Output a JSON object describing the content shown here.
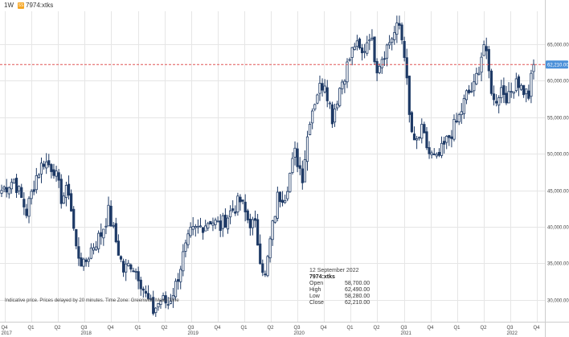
{
  "header": {
    "period": "1W",
    "badge": "SS",
    "symbol": "7974:xtks"
  },
  "last_price_label": "62,210.00",
  "footer_note": "Indicative price. Prices delayed by 20 minutes.   Time Zone: Greenwich Mean Time",
  "info": {
    "date": "12 September 2022",
    "symbol": "7974:xtks",
    "rows": [
      {
        "label": "Open",
        "value": "58,700.00"
      },
      {
        "label": "High",
        "value": "62,490.00"
      },
      {
        "label": "Low",
        "value": "58,280.00"
      },
      {
        "label": "Close",
        "value": "62,210.00"
      }
    ]
  },
  "colors": {
    "candle": "#1e3a66",
    "grid": "#e6e6e6",
    "last_price_line": "#e05555",
    "price_tag": "#4a90d9"
  },
  "chart_data": {
    "type": "candlestick",
    "title": "",
    "ylabel": "",
    "ylim": [
      27000,
      69500
    ],
    "y_ticks": [
      30000,
      35000,
      40000,
      45000,
      50000,
      55000,
      60000,
      65000
    ],
    "y_tick_labels": [
      "30,000.00",
      "35,000.00",
      "40,000.00",
      "45,000.00",
      "50,000.00",
      "55,000.00",
      "60,000.00",
      "65,000.00"
    ],
    "x_ticks": [
      {
        "q": "Q4",
        "year": "2017"
      },
      {
        "q": "Q1",
        "year": ""
      },
      {
        "q": "Q2",
        "year": ""
      },
      {
        "q": "Q3",
        "year": "2018"
      },
      {
        "q": "Q4",
        "year": ""
      },
      {
        "q": "Q1",
        "year": ""
      },
      {
        "q": "Q2",
        "year": ""
      },
      {
        "q": "Q3",
        "year": "2019"
      },
      {
        "q": "Q4",
        "year": ""
      },
      {
        "q": "Q1",
        "year": ""
      },
      {
        "q": "Q2",
        "year": ""
      },
      {
        "q": "Q3",
        "year": "2020"
      },
      {
        "q": "Q4",
        "year": ""
      },
      {
        "q": "Q1",
        "year": ""
      },
      {
        "q": "Q2",
        "year": ""
      },
      {
        "q": "Q3",
        "year": "2021"
      },
      {
        "q": "Q4",
        "year": ""
      },
      {
        "q": "Q1",
        "year": ""
      },
      {
        "q": "Q2",
        "year": ""
      },
      {
        "q": "Q3",
        "year": "2022"
      },
      {
        "q": "Q4",
        "year": ""
      }
    ],
    "last_close": 62210,
    "close_anchors": [
      [
        0,
        45000
      ],
      [
        5,
        46500
      ],
      [
        10,
        42000
      ],
      [
        14,
        47000
      ],
      [
        17,
        49000
      ],
      [
        21,
        48000
      ],
      [
        24,
        44000
      ],
      [
        27,
        45000
      ],
      [
        30,
        37000
      ],
      [
        33,
        34500
      ],
      [
        36,
        37000
      ],
      [
        40,
        39000
      ],
      [
        43,
        42000
      ],
      [
        46,
        38000
      ],
      [
        49,
        34000
      ],
      [
        52,
        35000
      ],
      [
        55,
        33500
      ],
      [
        58,
        30500
      ],
      [
        61,
        28500
      ],
      [
        64,
        30000
      ],
      [
        67,
        29500
      ],
      [
        70,
        32000
      ],
      [
        73,
        36000
      ],
      [
        76,
        39000
      ],
      [
        80,
        40000
      ],
      [
        84,
        41000
      ],
      [
        88,
        40000
      ],
      [
        92,
        42000
      ],
      [
        96,
        43500
      ],
      [
        99,
        41000
      ],
      [
        102,
        40000
      ],
      [
        104,
        36000
      ],
      [
        106,
        33000
      ],
      [
        108,
        38000
      ],
      [
        111,
        44000
      ],
      [
        114,
        44500
      ],
      [
        118,
        50000
      ],
      [
        121,
        47000
      ],
      [
        124,
        55000
      ],
      [
        127,
        58500
      ],
      [
        130,
        60000
      ],
      [
        133,
        55000
      ],
      [
        136,
        59000
      ],
      [
        139,
        62000
      ],
      [
        142,
        65000
      ],
      [
        145,
        63500
      ],
      [
        148,
        66500
      ],
      [
        151,
        62000
      ],
      [
        154,
        64000
      ],
      [
        157,
        66000
      ],
      [
        160,
        67500
      ],
      [
        162,
        64000
      ],
      [
        164,
        55000
      ],
      [
        166,
        51000
      ],
      [
        169,
        53000
      ],
      [
        172,
        50000
      ],
      [
        175,
        49000
      ],
      [
        178,
        51000
      ],
      [
        181,
        53000
      ],
      [
        184,
        55000
      ],
      [
        187,
        58000
      ],
      [
        190,
        59000
      ],
      [
        192,
        62000
      ],
      [
        194,
        65000
      ],
      [
        196,
        61000
      ],
      [
        198,
        57000
      ],
      [
        201,
        59000
      ],
      [
        204,
        57500
      ],
      [
        207,
        60500
      ],
      [
        209,
        59000
      ],
      [
        212,
        58000
      ],
      [
        214,
        62210
      ]
    ]
  }
}
